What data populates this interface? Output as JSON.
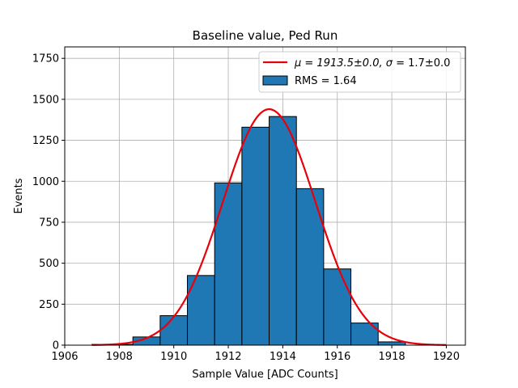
{
  "chart_data": {
    "type": "bar",
    "title": "Baseline value, Ped Run",
    "xlabel": "Sample Value [ADC Counts]",
    "ylabel": "Events",
    "xlim": [
      1906.0,
      1920.7
    ],
    "ylim": [
      0,
      1820
    ],
    "grid": true,
    "legend_position": "top-right",
    "x_ticks": [
      1906,
      1908,
      1910,
      1912,
      1914,
      1916,
      1918,
      1920
    ],
    "x_tick_labels": [
      "1906",
      "1908",
      "1910",
      "1912",
      "1914",
      "1916",
      "1918",
      "1920"
    ],
    "y_ticks": [
      0,
      250,
      500,
      750,
      1000,
      1250,
      1500,
      1750
    ],
    "y_tick_labels": [
      "0",
      "250",
      "500",
      "750",
      "1000",
      "1250",
      "1500",
      "1750"
    ],
    "histogram": {
      "name": "RMS = 1.64",
      "color": "#1f77b4",
      "edge_color": "#000000",
      "bin_edges": [
        1907.0,
        1908.5,
        1909.5,
        1910.5,
        1911.5,
        1912.5,
        1913.5,
        1914.5,
        1915.5,
        1916.5,
        1917.5,
        1918.5
      ],
      "counts": [
        5,
        50,
        180,
        425,
        990,
        1330,
        1395,
        955,
        465,
        135,
        20
      ]
    },
    "fit": {
      "name": "μ = 1913.5±0.0, σ = 1.7±0.0",
      "color": "#e8000b",
      "mu": 1913.5,
      "sigma": 1.7,
      "amplitude": 1440,
      "x_range": [
        1907.0,
        1920.0
      ]
    },
    "legend": {
      "fit_label_prefix": "μ = 1913.5±0.0, ",
      "fit_label_sigma": "σ",
      "fit_label_suffix": " = 1.7±0.0",
      "hist_label": "RMS = 1.64"
    }
  }
}
